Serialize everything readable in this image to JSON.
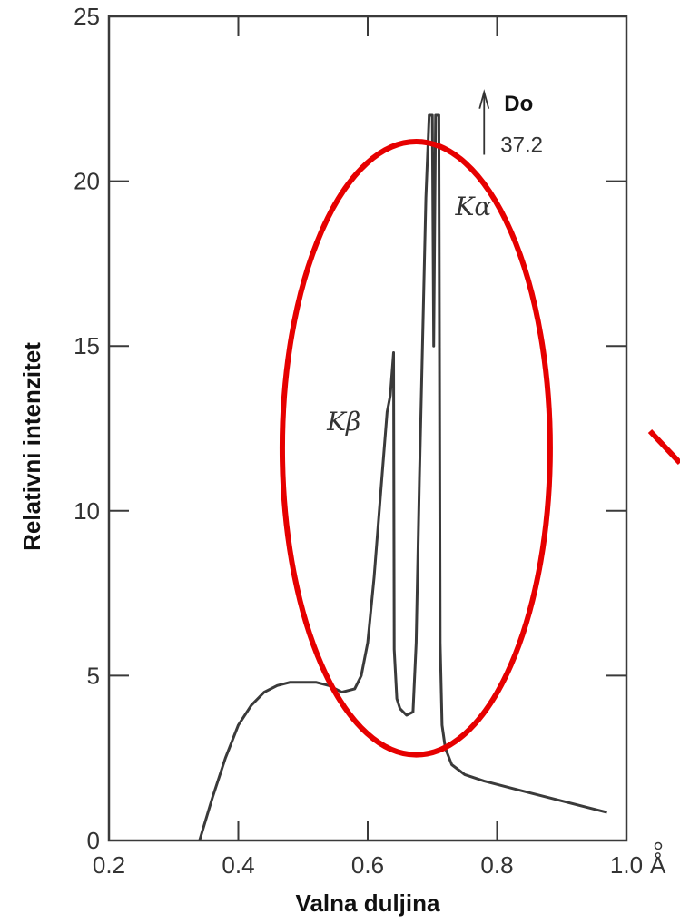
{
  "chart_data": {
    "type": "line",
    "title": "",
    "xlabel": "Valna duljina",
    "ylabel": "Relativni intenzitet",
    "xlim": [
      0.2,
      1.0
    ],
    "ylim": [
      0,
      25
    ],
    "x_unit": "Å",
    "x_ticks": [
      "0.2",
      "0.4",
      "0.6",
      "0.8",
      "1.0"
    ],
    "y_ticks": [
      "0",
      "5",
      "10",
      "15",
      "20",
      "25"
    ],
    "grid": false,
    "legend": "none",
    "series": [
      {
        "x": [
          0.34,
          0.36,
          0.38,
          0.4,
          0.42,
          0.44,
          0.46,
          0.48,
          0.5,
          0.52,
          0.54,
          0.56,
          0.58,
          0.59,
          0.6,
          0.61,
          0.62,
          0.63,
          0.635,
          0.64,
          0.641,
          0.645,
          0.65,
          0.66,
          0.67,
          0.675,
          0.68,
          0.69,
          0.695,
          0.7,
          0.702,
          0.705,
          0.71,
          0.712,
          0.715,
          0.72,
          0.73,
          0.75,
          0.78,
          0.82,
          0.86,
          0.9,
          0.94,
          0.97
        ],
        "y": [
          0,
          1.3,
          2.5,
          3.5,
          4.1,
          4.5,
          4.7,
          4.8,
          4.8,
          4.8,
          4.7,
          4.5,
          4.6,
          5.0,
          6.0,
          8.0,
          10.5,
          13.0,
          13.5,
          14.8,
          5.8,
          4.3,
          4.0,
          3.8,
          3.9,
          6.0,
          11.0,
          19.5,
          22.0,
          22.0,
          15.0,
          22.0,
          22.0,
          6.0,
          3.5,
          2.8,
          2.3,
          2.0,
          1.8,
          1.6,
          1.4,
          1.2,
          1.0,
          0.85
        ]
      }
    ],
    "annotations": [
      {
        "text": "Kα",
        "x": 0.8,
        "y": 19.3
      },
      {
        "text": "Kβ",
        "x": 0.61,
        "y": 13.0
      },
      {
        "text": "Do",
        "text2": "37.2",
        "x": 0.79,
        "y": 22.0
      }
    ],
    "highlight": {
      "shape": "ellipse",
      "color": "#e60000",
      "cx": 0.675,
      "cy": 11.9,
      "rx": 0.207,
      "ry": 9.3
    }
  }
}
